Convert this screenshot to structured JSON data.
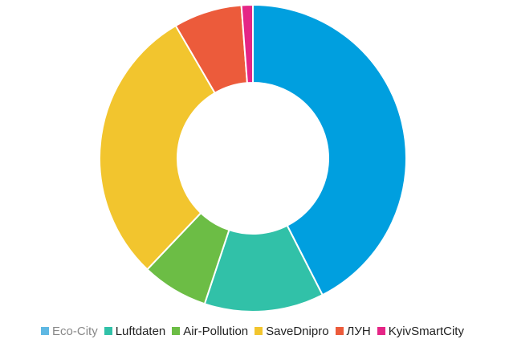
{
  "chart_data": {
    "type": "pie",
    "variant": "donut",
    "title": "",
    "legend_placement": "bottom",
    "categories": [
      "Eco-City",
      "Luftdaten",
      "Air-Pollution",
      "SaveDnipro",
      "ЛУН",
      "KyivSmartCity"
    ],
    "values": [
      42.5,
      12.6,
      7.0,
      29.5,
      7.2,
      1.2
    ],
    "colors": [
      "#009fdf",
      "#31c1a8",
      "#6cbd45",
      "#f2c52e",
      "#ec5b3b",
      "#e52586"
    ],
    "legend_swatch_colors": [
      "#5fb8e3",
      "#31c1a8",
      "#6cbd45",
      "#f2c52e",
      "#ec5b3b",
      "#e52586"
    ],
    "legend_text_colors": [
      "#888888",
      "#222222",
      "#222222",
      "#222222",
      "#222222",
      "#222222"
    ]
  }
}
